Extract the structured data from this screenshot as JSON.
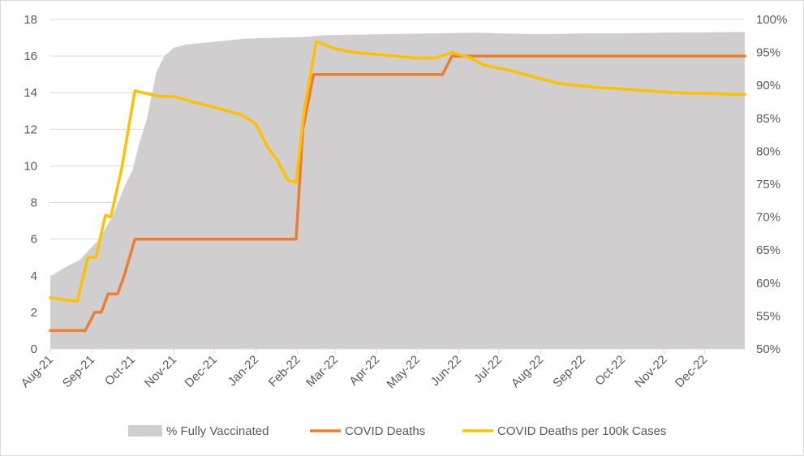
{
  "chart_data": {
    "type": "line",
    "title": "",
    "xlabel": "",
    "ylabel": "",
    "ylim": [
      0,
      18
    ],
    "y2lim": [
      0.5,
      1.0
    ],
    "grid": true,
    "legend_position": "bottom",
    "x_start": "2021-08-01",
    "x_end": "2022-12-31",
    "x_ticks": [
      {
        "date": "2021-08-01",
        "label": "Aug-21"
      },
      {
        "date": "2021-09-01",
        "label": "Sep-21"
      },
      {
        "date": "2021-10-01",
        "label": "Oct-21"
      },
      {
        "date": "2021-11-01",
        "label": "Nov-21"
      },
      {
        "date": "2021-12-01",
        "label": "Dec-21"
      },
      {
        "date": "2022-01-01",
        "label": "Jan-22"
      },
      {
        "date": "2022-02-01",
        "label": "Feb-22"
      },
      {
        "date": "2022-03-01",
        "label": "Mar-22"
      },
      {
        "date": "2022-04-01",
        "label": "Apr-22"
      },
      {
        "date": "2022-05-01",
        "label": "May-22"
      },
      {
        "date": "2022-06-01",
        "label": "Jun-22"
      },
      {
        "date": "2022-07-01",
        "label": "Jul-22"
      },
      {
        "date": "2022-08-01",
        "label": "Aug-22"
      },
      {
        "date": "2022-09-01",
        "label": "Sep-22"
      },
      {
        "date": "2022-10-01",
        "label": "Oct-22"
      },
      {
        "date": "2022-11-01",
        "label": "Nov-22"
      },
      {
        "date": "2022-12-01",
        "label": "Dec-22"
      }
    ],
    "y_ticks": [
      "0",
      "2",
      "4",
      "6",
      "8",
      "10",
      "12",
      "14",
      "16",
      "18"
    ],
    "y2_ticks": [
      "50%",
      "55%",
      "60%",
      "65%",
      "70%",
      "75%",
      "80%",
      "85%",
      "90%",
      "95%",
      "100%"
    ],
    "series": [
      {
        "name": "% Fully Vaccinated",
        "type": "area",
        "axis": "right",
        "color": "#d0cece",
        "points": [
          [
            "2021-08-01",
            0.61
          ],
          [
            "2021-08-13",
            0.625
          ],
          [
            "2021-08-23",
            0.635
          ],
          [
            "2021-09-01",
            0.655
          ],
          [
            "2021-09-06",
            0.665
          ],
          [
            "2021-09-16",
            0.7
          ],
          [
            "2021-09-26",
            0.75
          ],
          [
            "2021-10-01",
            0.77
          ],
          [
            "2021-10-06",
            0.81
          ],
          [
            "2021-10-12",
            0.85
          ],
          [
            "2021-10-19",
            0.92
          ],
          [
            "2021-10-25",
            0.945
          ],
          [
            "2021-11-01",
            0.957
          ],
          [
            "2021-11-10",
            0.962
          ],
          [
            "2021-11-25",
            0.965
          ],
          [
            "2021-12-10",
            0.968
          ],
          [
            "2021-12-25",
            0.971
          ],
          [
            "2022-01-10",
            0.972
          ],
          [
            "2022-01-31",
            0.973
          ],
          [
            "2022-02-10",
            0.974
          ],
          [
            "2022-02-20",
            0.976
          ],
          [
            "2022-03-15",
            0.977
          ],
          [
            "2022-04-15",
            0.978
          ],
          [
            "2022-05-15",
            0.979
          ],
          [
            "2022-06-15",
            0.98
          ],
          [
            "2022-07-01",
            0.979
          ],
          [
            "2022-07-20",
            0.978
          ],
          [
            "2022-08-15",
            0.978
          ],
          [
            "2022-09-01",
            0.979
          ],
          [
            "2022-10-01",
            0.979
          ],
          [
            "2022-11-01",
            0.98
          ],
          [
            "2022-12-31",
            0.981
          ]
        ]
      },
      {
        "name": "COVID Deaths",
        "type": "line",
        "axis": "left",
        "color": "#ed7d31",
        "points": [
          [
            "2021-08-01",
            1
          ],
          [
            "2021-08-27",
            1
          ],
          [
            "2021-09-03",
            2
          ],
          [
            "2021-09-08",
            2
          ],
          [
            "2021-09-13",
            3
          ],
          [
            "2021-09-20",
            3
          ],
          [
            "2021-09-25",
            4
          ],
          [
            "2021-10-03",
            6
          ],
          [
            "2022-01-31",
            6
          ],
          [
            "2022-02-05",
            12
          ],
          [
            "2022-02-13",
            15
          ],
          [
            "2022-05-20",
            15
          ],
          [
            "2022-05-27",
            16
          ],
          [
            "2022-12-31",
            16
          ]
        ]
      },
      {
        "name": "COVID Deaths per 100k Cases",
        "type": "line",
        "axis": "left",
        "color": "#ffc000",
        "points": [
          [
            "2021-08-01",
            2.8
          ],
          [
            "2021-08-10",
            2.7
          ],
          [
            "2021-08-21",
            2.6
          ],
          [
            "2021-08-29",
            5.0
          ],
          [
            "2021-09-04",
            5.0
          ],
          [
            "2021-09-11",
            7.3
          ],
          [
            "2021-09-15",
            7.2
          ],
          [
            "2021-09-23",
            9.8
          ],
          [
            "2021-10-03",
            14.1
          ],
          [
            "2021-10-21",
            13.8
          ],
          [
            "2021-11-01",
            13.8
          ],
          [
            "2021-11-15",
            13.5
          ],
          [
            "2021-12-01",
            13.2
          ],
          [
            "2021-12-21",
            12.8
          ],
          [
            "2022-01-01",
            12.3
          ],
          [
            "2022-01-10",
            11.0
          ],
          [
            "2022-01-17",
            10.3
          ],
          [
            "2022-01-25",
            9.2
          ],
          [
            "2022-01-31",
            9.1
          ],
          [
            "2022-02-06",
            13.0
          ],
          [
            "2022-02-15",
            16.8
          ],
          [
            "2022-03-01",
            16.4
          ],
          [
            "2022-03-15",
            16.2
          ],
          [
            "2022-04-01",
            16.1
          ],
          [
            "2022-04-15",
            16.0
          ],
          [
            "2022-05-01",
            15.9
          ],
          [
            "2022-05-15",
            15.9
          ],
          [
            "2022-05-27",
            16.2
          ],
          [
            "2022-06-10",
            15.9
          ],
          [
            "2022-06-20",
            15.5
          ],
          [
            "2022-07-10",
            15.2
          ],
          [
            "2022-07-30",
            14.8
          ],
          [
            "2022-08-15",
            14.5
          ],
          [
            "2022-09-10",
            14.3
          ],
          [
            "2022-10-01",
            14.2
          ],
          [
            "2022-10-20",
            14.1
          ],
          [
            "2022-11-10",
            14.0
          ],
          [
            "2022-12-31",
            13.9
          ]
        ]
      }
    ]
  }
}
